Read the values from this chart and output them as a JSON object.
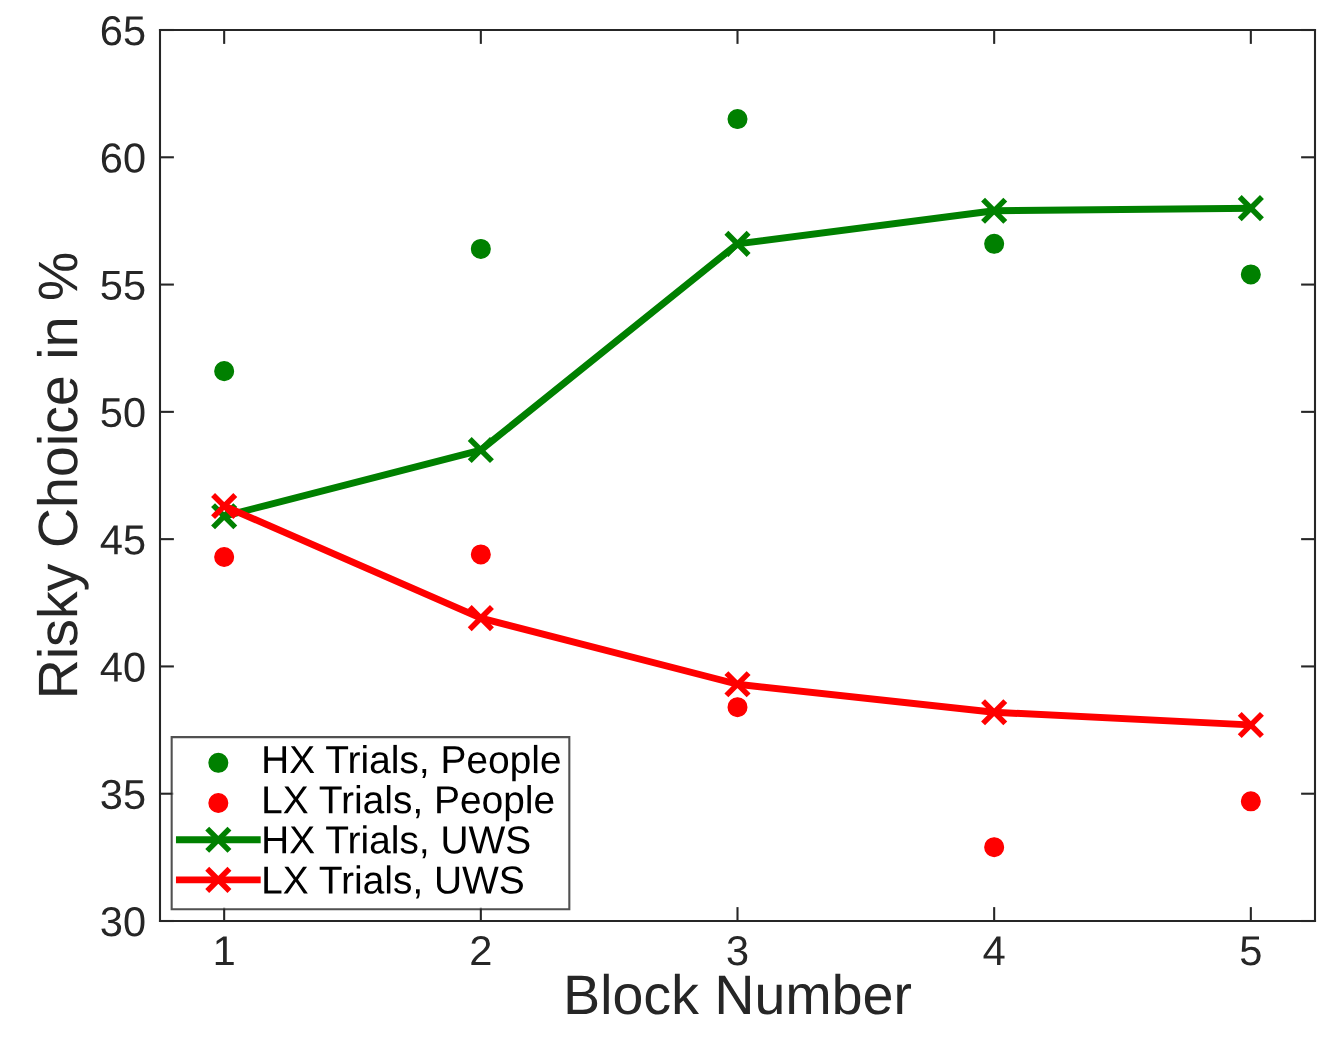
{
  "chart_data": {
    "type": "line",
    "xlabel": "Block Number",
    "ylabel": "Risky Choice in %",
    "x": [
      1,
      2,
      3,
      4,
      5
    ],
    "xlim": [
      0.75,
      5.25
    ],
    "xticks": [
      1,
      2,
      3,
      4,
      5
    ],
    "ylim": [
      30,
      65
    ],
    "yticks": [
      30,
      35,
      40,
      45,
      50,
      55,
      60,
      65
    ],
    "grid": false,
    "legend": "bottom left",
    "series": [
      {
        "name": "HX Trials, People",
        "type": "scatter",
        "marker": "circle",
        "color": "#008000",
        "values": [
          51.6,
          56.4,
          61.5,
          56.6,
          55.4
        ]
      },
      {
        "name": "LX Trials, People",
        "type": "scatter",
        "marker": "circle",
        "color": "#ff0000",
        "values": [
          44.3,
          44.4,
          38.4,
          32.9,
          34.7
        ]
      },
      {
        "name": "HX Trials, UWS",
        "marker": "cross",
        "line_style": "solid",
        "color": "#008000",
        "values": [
          45.9,
          48.5,
          56.6,
          57.9,
          58.0
        ]
      },
      {
        "name": "LX Trials, UWS",
        "marker": "cross",
        "line_style": "solid",
        "color": "#ff0000",
        "values": [
          46.3,
          41.9,
          39.3,
          38.2,
          37.7
        ]
      }
    ]
  }
}
